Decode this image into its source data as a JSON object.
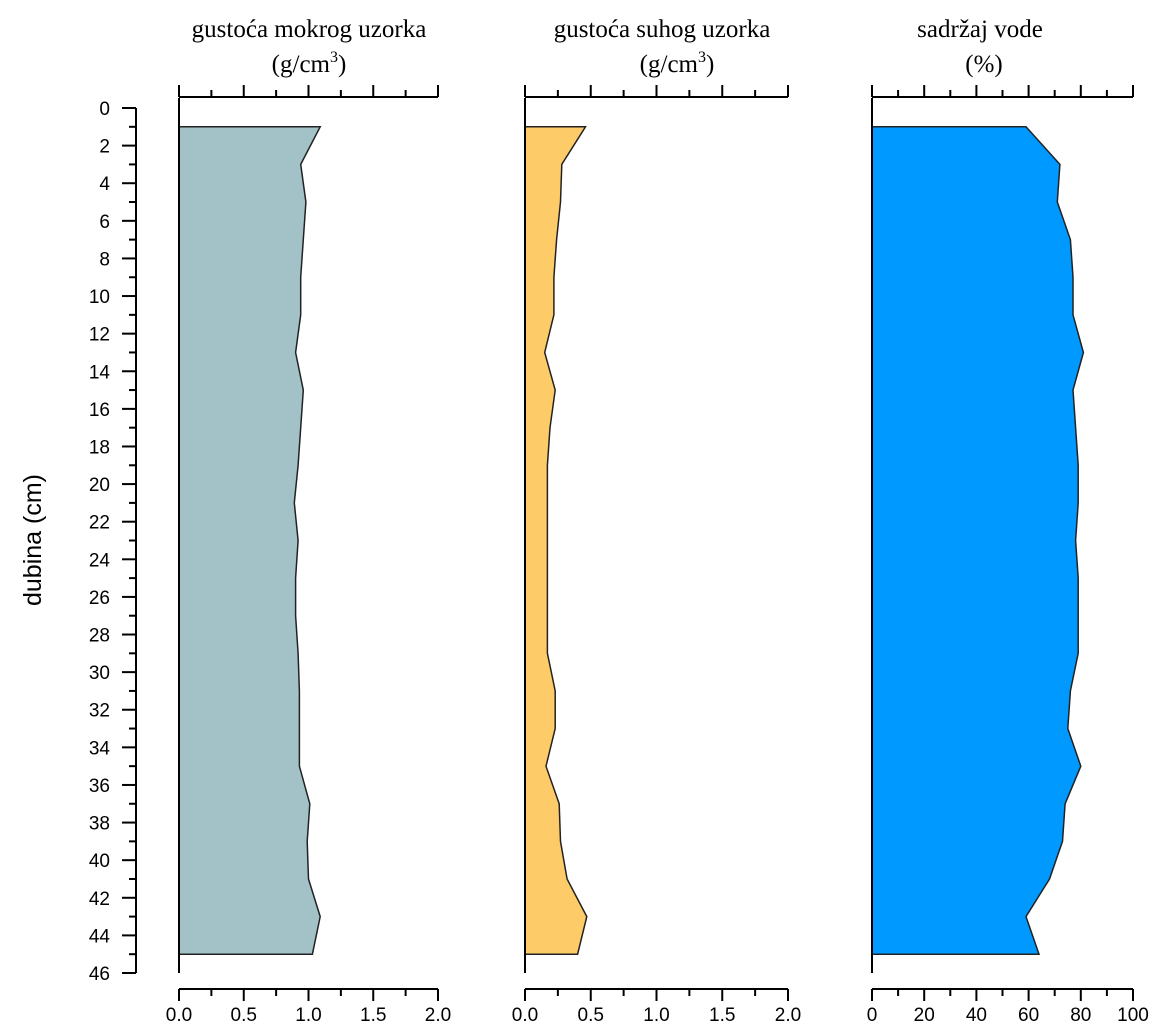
{
  "chart_data": {
    "type": "area",
    "ylabel": "dubina (cm)",
    "ylim": [
      0,
      46
    ],
    "y_ticks": [
      0,
      2,
      4,
      6,
      8,
      10,
      12,
      14,
      16,
      18,
      20,
      22,
      24,
      26,
      28,
      30,
      32,
      34,
      36,
      38,
      40,
      42,
      44,
      46
    ],
    "y_inverted": true,
    "depth": [
      1,
      3,
      5,
      7,
      9,
      11,
      13,
      15,
      17,
      19,
      21,
      23,
      25,
      27,
      29,
      31,
      33,
      35,
      37,
      39,
      41,
      43,
      45
    ],
    "panels": [
      {
        "title_line1": "gustoća mokrog uzorka",
        "title_line2_prefix": "(g/cm",
        "title_line2_sup": "3",
        "title_line2_suffix": ")",
        "xlim": [
          0,
          2
        ],
        "x_ticks": [
          0,
          0.5,
          1,
          1.5,
          2
        ],
        "x_tick_labels": [
          "0.0",
          "0.5",
          "1.0",
          "1.5",
          "2.0"
        ],
        "color": "#a2c2c8",
        "values": [
          1.09,
          0.94,
          0.98,
          0.96,
          0.94,
          0.94,
          0.9,
          0.96,
          0.94,
          0.92,
          0.89,
          0.92,
          0.9,
          0.9,
          0.92,
          0.93,
          0.93,
          0.93,
          1.01,
          0.99,
          1.0,
          1.09,
          1.03
        ]
      },
      {
        "title_line1": "gustoća suhog uzorka",
        "title_line2_prefix": "(g/cm",
        "title_line2_sup": "3",
        "title_line2_suffix": ")",
        "xlim": [
          0,
          2
        ],
        "x_ticks": [
          0,
          0.5,
          1,
          1.5,
          2
        ],
        "x_tick_labels": [
          "0.0",
          "0.5",
          "1.0",
          "1.5",
          "2.0"
        ],
        "color": "#fecb69",
        "values": [
          0.46,
          0.28,
          0.27,
          0.24,
          0.22,
          0.22,
          0.15,
          0.23,
          0.19,
          0.17,
          0.17,
          0.17,
          0.17,
          0.17,
          0.17,
          0.23,
          0.23,
          0.16,
          0.26,
          0.27,
          0.32,
          0.47,
          0.4
        ]
      },
      {
        "title_line1": "sadržaj vode",
        "title_line2_prefix": "(%)",
        "title_line2_sup": "",
        "title_line2_suffix": "",
        "xlim": [
          0,
          100
        ],
        "x_ticks": [
          0,
          20,
          40,
          60,
          80,
          100
        ],
        "x_tick_labels": [
          "0",
          "20",
          "40",
          "60",
          "80",
          "100"
        ],
        "color": "#0099ff",
        "values": [
          59,
          72,
          71,
          76,
          77,
          77,
          81,
          77,
          78,
          79,
          79,
          78,
          79,
          79,
          79,
          76,
          75,
          80,
          74,
          73,
          68,
          59,
          64
        ]
      }
    ]
  }
}
